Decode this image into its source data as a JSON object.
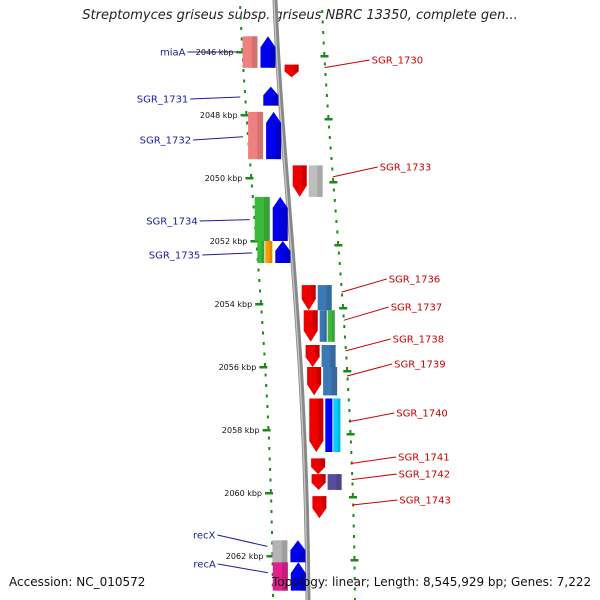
{
  "title": "Streptomyces griseus subsp. griseus NBRC 13350, complete gen...",
  "footer": {
    "accession": "Accession: NC_010572",
    "stats": "Topology: linear; Length: 8,545,929 bp; Genes: 7,222"
  },
  "colors": {
    "forward_label": "#1c1ca0",
    "reverse_label": "#cc0000",
    "backbone": "#888888",
    "guide_dots": "#1a8a1a"
  },
  "axis": {
    "unit": "kbp",
    "ticks": [
      2046,
      2048,
      2050,
      2052,
      2054,
      2056,
      2058,
      2060,
      2062
    ],
    "tick_labels": [
      "2046 kbp",
      "2048 kbp",
      "2050 kbp",
      "2052 kbp",
      "2054 kbp",
      "2056 kbp",
      "2058 kbp",
      "2060 kbp",
      "2062 kbp"
    ]
  },
  "genes": {
    "forward": [
      {
        "name": "miaA",
        "start": 2045.5,
        "end": 2046.5
      },
      {
        "name": "SGR_1731",
        "start": 2047.1,
        "end": 2047.7
      },
      {
        "name": "SGR_1732",
        "start": 2047.9,
        "end": 2049.4
      },
      {
        "name": "SGR_1734",
        "start": 2050.6,
        "end": 2052.0
      },
      {
        "name": "SGR_1735",
        "start": 2052.0,
        "end": 2052.7
      },
      {
        "name": "recX",
        "start": 2061.5,
        "end": 2062.2
      },
      {
        "name": "recA",
        "start": 2062.2,
        "end": 2063.1
      }
    ],
    "reverse": [
      {
        "name": "SGR_1730",
        "start": 2046.4,
        "end": 2046.8
      },
      {
        "name": "SGR_1733",
        "start": 2049.6,
        "end": 2050.6
      },
      {
        "name": "SGR_1736",
        "start": 2053.4,
        "end": 2054.2
      },
      {
        "name": "SGR_1737",
        "start": 2054.2,
        "end": 2055.2
      },
      {
        "name": "SGR_1738",
        "start": 2055.3,
        "end": 2056.0
      },
      {
        "name": "SGR_1739",
        "start": 2056.0,
        "end": 2056.9
      },
      {
        "name": "SGR_1740",
        "start": 2057.0,
        "end": 2058.7
      },
      {
        "name": "SGR_1741",
        "start": 2058.9,
        "end": 2059.4
      },
      {
        "name": "SGR_1742",
        "start": 2059.4,
        "end": 2059.9
      },
      {
        "name": "SGR_1743",
        "start": 2060.1,
        "end": 2060.8
      }
    ]
  }
}
